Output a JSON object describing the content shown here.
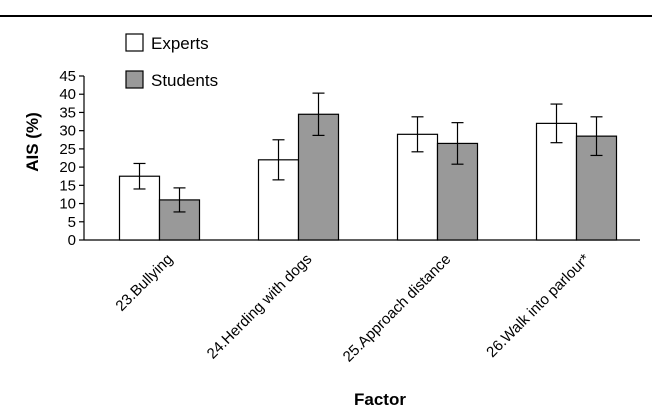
{
  "chart_data": {
    "type": "bar",
    "categories": [
      "23.Bullying",
      "24.Herding with dogs",
      "25.Approach distance",
      "26.Walk into parlour*"
    ],
    "series": [
      {
        "name": "Experts",
        "color": "#ffffff",
        "values": [
          17.5,
          22,
          29,
          32
        ],
        "errors": [
          3.5,
          5.5,
          4.8,
          5.3
        ]
      },
      {
        "name": "Students",
        "color": "#999999",
        "values": [
          11,
          34.5,
          26.5,
          28.5
        ],
        "errors": [
          3.3,
          5.8,
          5.7,
          5.3
        ]
      }
    ],
    "xlabel": "Factor",
    "ylabel": "AIS (%)",
    "ylim": [
      0,
      45
    ],
    "yticks": [
      0,
      5,
      10,
      15,
      20,
      25,
      30,
      35,
      40,
      45
    ],
    "grid": false,
    "legend_position": "top-left"
  }
}
